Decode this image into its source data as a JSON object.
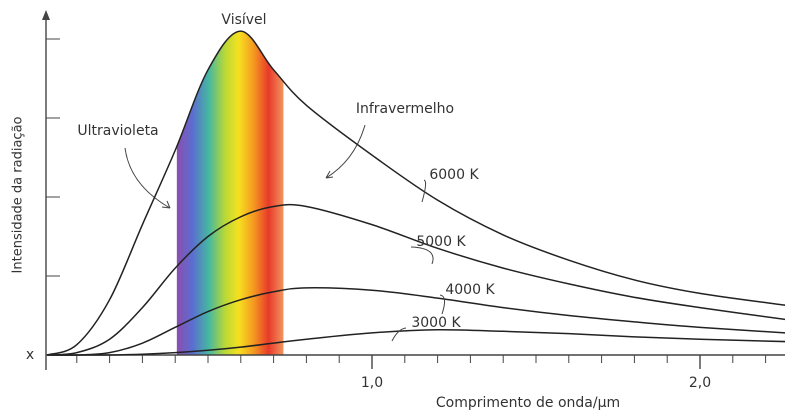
{
  "chart_data": {
    "type": "line",
    "ylabel": "Intensidade da radiação",
    "xlabel": "Comprimento de onda/µm",
    "origin_label": "x",
    "band_label": "Visível",
    "uv_label": "Ultravioleta",
    "ir_label": "Infravermelho",
    "visible_range": [
      0.405,
      0.73
    ],
    "x": [
      0.01,
      0.1,
      0.2,
      0.3,
      0.4,
      0.5,
      0.6,
      0.7,
      0.8,
      1.0,
      1.2,
      1.4,
      1.6,
      1.8,
      2.0,
      2.26
    ],
    "series": [
      {
        "name": "6000 K",
        "color": "#222",
        "values": [
          0,
          0.13,
          0.7,
          1.65,
          2.59,
          3.61,
          4.1,
          3.61,
          3.16,
          2.53,
          1.96,
          1.52,
          1.2,
          0.95,
          0.78,
          0.63
        ]
      },
      {
        "name": "5000 K",
        "color": "#222",
        "values": [
          0,
          0.03,
          0.2,
          0.6,
          1.1,
          1.5,
          1.75,
          1.88,
          1.88,
          1.65,
          1.35,
          1.1,
          0.9,
          0.73,
          0.6,
          0.45
        ]
      },
      {
        "name": "4000 K",
        "color": "#222",
        "values": [
          0,
          0,
          0.03,
          0.15,
          0.35,
          0.55,
          0.7,
          0.8,
          0.85,
          0.82,
          0.72,
          0.6,
          0.5,
          0.42,
          0.35,
          0.28
        ]
      },
      {
        "name": "3000 K",
        "color": "#222",
        "values": [
          0,
          0,
          0,
          0.01,
          0.03,
          0.06,
          0.1,
          0.15,
          0.2,
          0.28,
          0.32,
          0.3,
          0.27,
          0.23,
          0.2,
          0.17
        ]
      }
    ],
    "xlim": [
      0,
      2.26
    ],
    "ylim": [
      0,
      4.3
    ],
    "xticks": [
      {
        "value": 1,
        "label": "1,0"
      },
      {
        "value": 2,
        "label": "2,0"
      }
    ],
    "x_minor_tick_step": 0.1,
    "yticks": [
      1,
      2,
      3,
      4
    ]
  }
}
